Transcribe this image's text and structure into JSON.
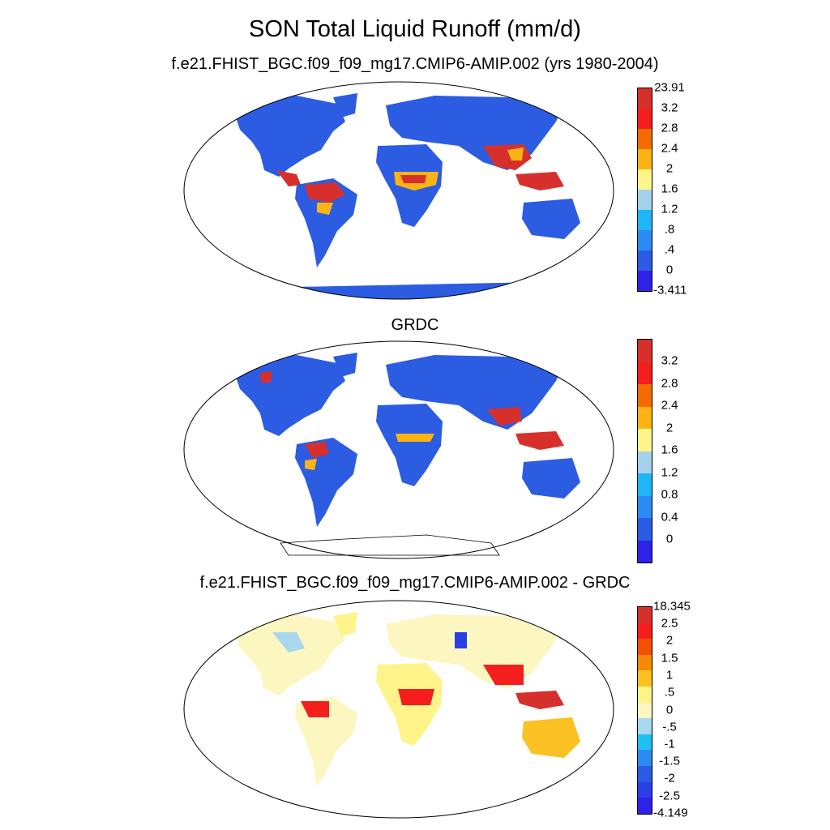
{
  "title": "SON Total Liquid Runoff (mm/d)",
  "panels": [
    {
      "title": "f.e21.FHIST_BGC.f09_f09_mg17.CMIP6-AMIP.002 (yrs 1980-2004)",
      "colorbar": {
        "labels": [
          "23.91",
          "3.2",
          "2.8",
          "2.4",
          "2",
          "1.6",
          "1.2",
          ".8",
          ".4",
          "0",
          "-3.411"
        ],
        "colors": [
          "#d7302c",
          "#f41e1e",
          "#f46b06",
          "#fbb414",
          "#fcf58a",
          "#a4d2ec",
          "#1eb6f4",
          "#2b8bf2",
          "#2b5ce2",
          "#2c22e8"
        ]
      }
    },
    {
      "title": "GRDC",
      "colorbar": {
        "labels": [
          "3.2",
          "2.8",
          "2.4",
          "2",
          "1.6",
          "1.2",
          "0.8",
          "0.4",
          "0"
        ],
        "colors": [
          "#d7302c",
          "#f41e1e",
          "#f46b06",
          "#fbb414",
          "#fcf58a",
          "#a4d2ec",
          "#1eb6f4",
          "#2b8bf2",
          "#2b5ce2",
          "#2c22e8"
        ]
      }
    },
    {
      "title": "f.e21.FHIST_BGC.f09_f09_mg17.CMIP6-AMIP.002 - GRDC",
      "colorbar": {
        "labels": [
          "18.345",
          "2.5",
          "2",
          "1.5",
          "1",
          ".5",
          "0",
          "-.5",
          "-1",
          "-1.5",
          "-2",
          "-2.5",
          "-4.149"
        ],
        "colors": [
          "#d7302c",
          "#f41e1e",
          "#f45006",
          "#f68a06",
          "#fbc022",
          "#fef48a",
          "#fcf6c0",
          "#a9d7ee",
          "#1ec0f4",
          "#2b8bf2",
          "#2b5ce2",
          "#2c3fe6",
          "#2c22e8"
        ]
      }
    }
  ]
}
